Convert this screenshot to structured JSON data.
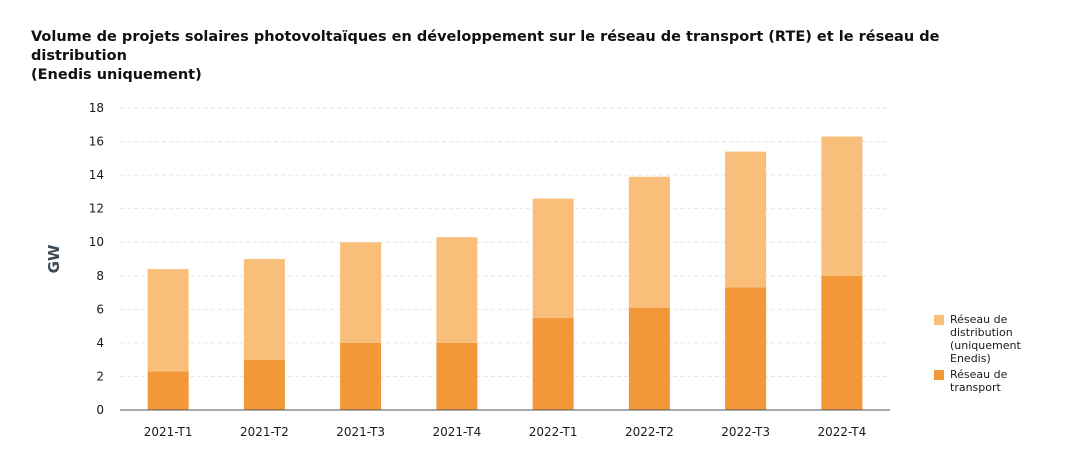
{
  "chart_data": {
    "type": "bar",
    "stacked": true,
    "title_lines": [
      "Volume de projets solaires photovoltaïques en développement sur le réseau de transport (RTE) et le réseau de distribution",
      "(Enedis uniquement)"
    ],
    "xlabel": "",
    "ylabel": "GW",
    "ylim": [
      0,
      18
    ],
    "yticks": [
      0,
      2,
      4,
      6,
      8,
      10,
      12,
      14,
      16,
      18
    ],
    "grid": true,
    "legend_position": "right",
    "categories": [
      "2021-T1",
      "2021-T2",
      "2021-T3",
      "2021-T4",
      "2022-T1",
      "2022-T2",
      "2022-T3",
      "2022-T4"
    ],
    "series": [
      {
        "name": "Réseau de transport",
        "color": "#f29839",
        "values": [
          2.3,
          3.0,
          4.0,
          4.0,
          5.5,
          6.1,
          7.3,
          8.0
        ]
      },
      {
        "name": "Réseau de distribution (uniquement Enedis)",
        "color": "#f9bf7a",
        "values": [
          6.1,
          6.0,
          6.0,
          6.3,
          7.1,
          7.8,
          8.1,
          8.3
        ]
      }
    ],
    "legend": [
      {
        "label": "Réseau de\ndistribution\n(uniquement\nEnedis)",
        "color": "#f9bf7a"
      },
      {
        "label": "Réseau de\ntransport",
        "color": "#f29839"
      }
    ]
  }
}
